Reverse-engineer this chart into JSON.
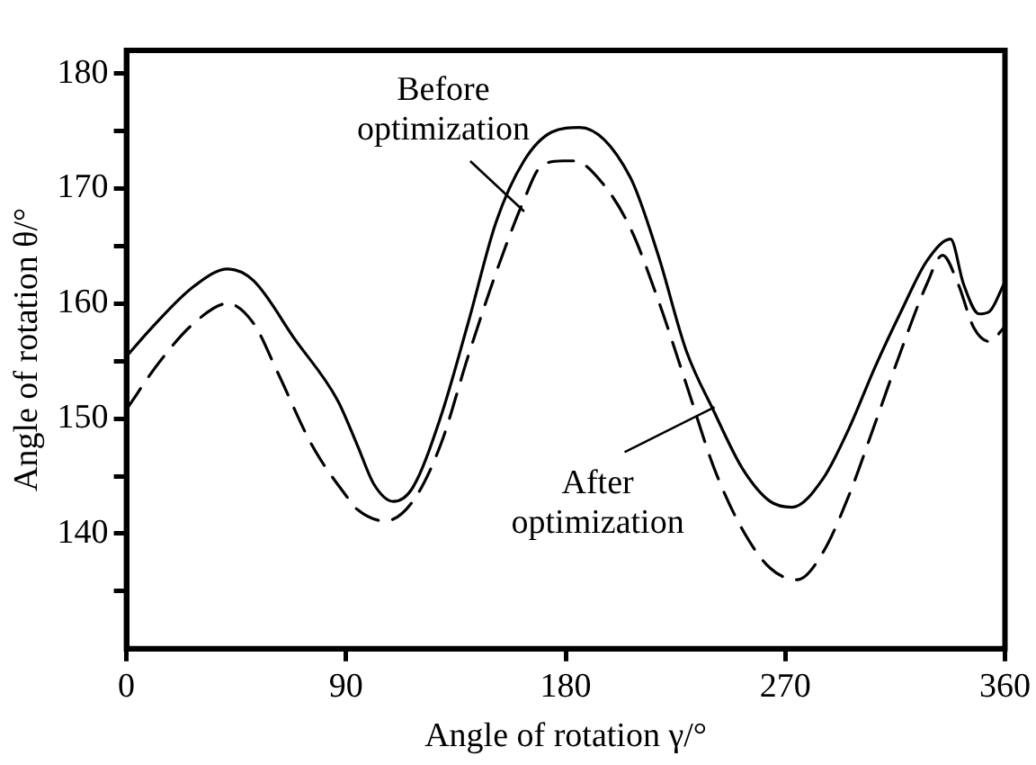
{
  "chart_data": {
    "type": "line",
    "xlabel": "Angle of rotation γ/°",
    "ylabel": "Angle of rotation θ/°",
    "xlim": [
      0,
      360
    ],
    "ylim": [
      130,
      182
    ],
    "xticks": [
      0,
      90,
      180,
      270,
      360
    ],
    "yticks": [
      {
        "value": 135,
        "label": null
      },
      140,
      {
        "value": 145,
        "label": null
      },
      150,
      {
        "value": 155,
        "label": null
      },
      160,
      {
        "value": 165,
        "label": null
      },
      170,
      {
        "value": 175,
        "label": null
      },
      180
    ],
    "grid": false,
    "legend": false,
    "marker": "none",
    "annotations": [
      {
        "text": "Before\noptimization",
        "x": 163,
        "y": 168
      },
      {
        "text": "After\noptimization",
        "x": 241,
        "y": 151
      }
    ],
    "series": [
      {
        "color": "#000000",
        "line_style": "solid",
        "x": [
          0,
          10.4,
          27.7,
          41.5,
          52,
          69,
          86.5,
          94.6,
          101.4,
          109.4,
          117.3,
          128.7,
          140,
          151.5,
          162.9,
          174.3,
          185.7,
          206.4,
          217.9,
          229.4,
          240.8,
          252.3,
          263.8,
          272.8,
          285.5,
          296,
          306.8,
          317.4,
          328,
          337.7,
          343,
          349.4,
          353.6,
          359.6
        ],
        "values": [
          155.4,
          157.9,
          161.5,
          163,
          162,
          156.9,
          151.6,
          147.7,
          144.3,
          142.8,
          144,
          150.1,
          158.3,
          167.1,
          172.4,
          174.9,
          175.3,
          171,
          164.2,
          155.9,
          150.6,
          145.7,
          142.8,
          142.3,
          144.8,
          149.1,
          154.5,
          159.3,
          163.7,
          165.6,
          161.7,
          159.1,
          159.3,
          161.7
        ]
      },
      {
        "color": "#000000",
        "line_style": "dashed",
        "x": [
          0,
          13.8,
          27.7,
          41.5,
          52,
          62,
          76,
          90,
          94.6,
          106,
          117.3,
          128.7,
          140,
          151.5,
          162.9,
          169.7,
          178.8,
          183.4,
          194.9,
          206.4,
          217.9,
          229.4,
          240.8,
          252.3,
          263.8,
          274.9,
          285.5,
          296,
          306.8,
          317.4,
          328,
          334.4,
          340.8,
          347.2,
          353.6,
          359.6
        ],
        "values": [
          150.8,
          155,
          158.3,
          160,
          158.3,
          154,
          147.7,
          143.3,
          142.1,
          141.1,
          142.8,
          147.7,
          155.4,
          162.7,
          169,
          171.9,
          172.4,
          172.4,
          170.5,
          166.6,
          160.3,
          153,
          145.7,
          140.4,
          137,
          136,
          138.4,
          143.3,
          149.6,
          155.9,
          161.7,
          164.2,
          161.7,
          157.9,
          156.7,
          157.9
        ]
      }
    ]
  }
}
